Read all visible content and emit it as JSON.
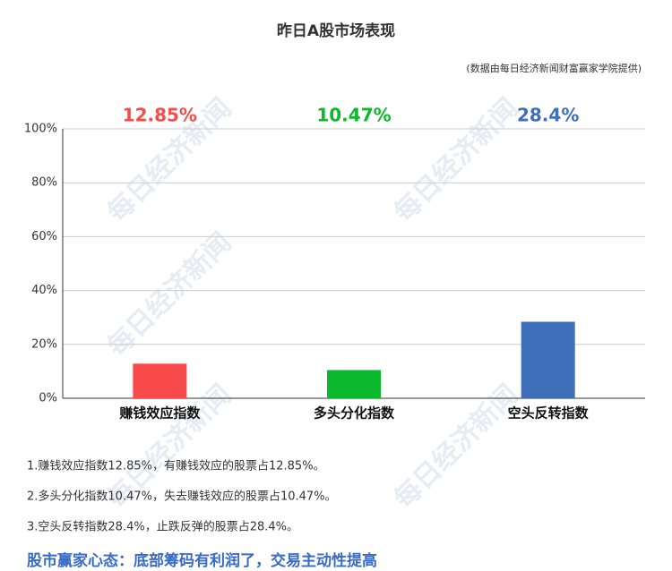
{
  "chart_data": {
    "type": "bar",
    "title": "昨日A股市场表现",
    "subtitle": "(数据由每日经济新闻财富赢家学院提供)",
    "categories": [
      "赚钱效应指数",
      "多头分化指数",
      "空头反转指数"
    ],
    "values": [
      12.85,
      10.47,
      28.4
    ],
    "value_labels": [
      "12.85%",
      "10.47%",
      "28.4%"
    ],
    "colors": [
      "#f94b4b",
      "#0cb82c",
      "#3f6fb8"
    ],
    "ylim": [
      0,
      100
    ],
    "yticks": [
      {
        "value": 0,
        "label": "0%"
      },
      {
        "value": 20,
        "label": "20%"
      },
      {
        "value": 40,
        "label": "40%"
      },
      {
        "value": 60,
        "label": "60%"
      },
      {
        "value": 80,
        "label": "80%"
      },
      {
        "value": 100,
        "label": "100%"
      }
    ],
    "grid": true
  },
  "watermark": "每日经济新闻",
  "notes": [
    "1.赚钱效应指数12.85%，有赚钱效应的股票占12.85%。",
    "2.多头分化指数10.47%，失去赚钱效应的股票占10.47%。",
    "3.空头反转指数28.4%，止跌反弹的股票占28.4%。"
  ],
  "headline": "股市赢家心态：底部筹码有利润了，交易主动性提高"
}
